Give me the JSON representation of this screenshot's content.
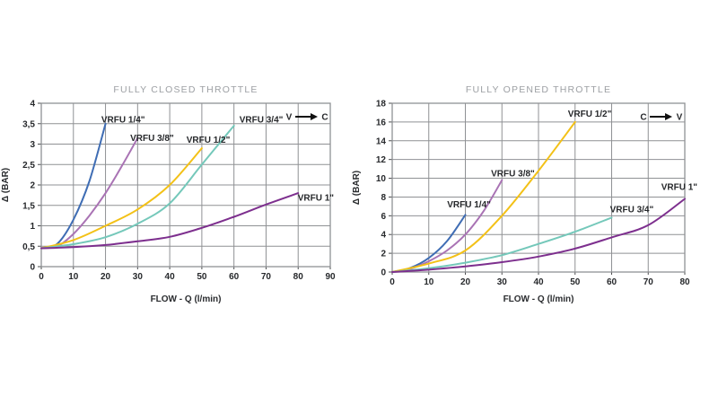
{
  "page": {
    "background": "#ffffff",
    "grid_color": "#8f9194",
    "text_color": "#26282b",
    "title_color": "#9da0a4"
  },
  "chart_data": [
    {
      "type": "line",
      "title": "FULLY CLOSED THROTTLE",
      "xlabel": "FLOW - Q (l/min)",
      "ylabel": "Δ (BAR)",
      "xlim": [
        0,
        90
      ],
      "ylim": [
        0,
        4
      ],
      "xticks": [
        0,
        10,
        20,
        30,
        40,
        50,
        60,
        70,
        80,
        90
      ],
      "yticks": [
        0,
        0.5,
        1,
        1.5,
        2,
        2.5,
        3,
        3.5,
        4
      ],
      "ytick_labels": [
        "0",
        "0,5",
        "1",
        "1,5",
        "2",
        "2,5",
        "3",
        "3,5",
        "4"
      ],
      "grid": true,
      "legend": "inline-series-labels",
      "direction_annotation": {
        "left_letter": "V",
        "right_letter": "C"
      },
      "series": [
        {
          "name": "VRFU 1/4\"",
          "color": "#3f6db4",
          "x": [
            0,
            5,
            10,
            15,
            20
          ],
          "y": [
            0.45,
            0.56,
            1.15,
            2.1,
            3.5
          ],
          "label_at": [
            25.5,
            3.53
          ]
        },
        {
          "name": "VRFU 3/8\"",
          "color": "#a973b4",
          "x": [
            0,
            5,
            10,
            15,
            20,
            25,
            30
          ],
          "y": [
            0.45,
            0.5,
            0.8,
            1.25,
            1.8,
            2.45,
            3.15
          ],
          "label_at": [
            34.5,
            3.08
          ]
        },
        {
          "name": "VRFU 1/2\"",
          "color": "#f3c117",
          "x": [
            0,
            10,
            20,
            30,
            40,
            50
          ],
          "y": [
            0.45,
            0.65,
            1.0,
            1.4,
            2.0,
            2.9
          ],
          "label_at": [
            52,
            3.03
          ]
        },
        {
          "name": "VRFU 3/4\"",
          "color": "#74c8ba",
          "x": [
            0,
            10,
            20,
            30,
            40,
            50,
            60
          ],
          "y": [
            0.45,
            0.55,
            0.72,
            1.05,
            1.55,
            2.5,
            3.45
          ],
          "label_at": [
            68.5,
            3.53
          ]
        },
        {
          "name": "VRFU 1\"",
          "color": "#7d2f8e",
          "x": [
            0,
            10,
            20,
            30,
            40,
            50,
            60,
            70,
            80
          ],
          "y": [
            0.45,
            0.48,
            0.53,
            0.62,
            0.73,
            0.95,
            1.22,
            1.52,
            1.8
          ],
          "label_at": [
            85.5,
            1.62
          ]
        }
      ]
    },
    {
      "type": "line",
      "title": "FULLY OPENED THROTTLE",
      "xlabel": "FLOW - Q (l/min)",
      "ylabel": "Δ (BAR)",
      "xlim": [
        0,
        80
      ],
      "ylim": [
        0,
        18
      ],
      "xticks": [
        0,
        10,
        20,
        30,
        40,
        50,
        60,
        70,
        80
      ],
      "yticks": [
        0,
        2,
        4,
        6,
        8,
        10,
        12,
        14,
        16,
        18
      ],
      "ytick_labels": [
        "0",
        "2",
        "4",
        "6",
        "8",
        "10",
        "12",
        "14",
        "16",
        "18"
      ],
      "grid": true,
      "legend": "inline-series-labels",
      "direction_annotation": {
        "left_letter": "C",
        "right_letter": "V"
      },
      "series": [
        {
          "name": "VRFU 1/4\"",
          "color": "#3f6db4",
          "x": [
            0,
            5,
            10,
            15,
            20
          ],
          "y": [
            0,
            0.45,
            1.5,
            3.3,
            6.1
          ],
          "label_at": [
            21,
            6.9
          ]
        },
        {
          "name": "VRFU 3/8\"",
          "color": "#a973b4",
          "x": [
            0,
            5,
            10,
            15,
            20,
            25,
            30
          ],
          "y": [
            0,
            0.35,
            1.15,
            2.3,
            4.0,
            6.5,
            9.8
          ],
          "label_at": [
            33,
            10.2
          ]
        },
        {
          "name": "VRFU 1/2\"",
          "color": "#f3c117",
          "x": [
            0,
            10,
            20,
            30,
            40,
            50
          ],
          "y": [
            0,
            0.9,
            2.3,
            6.0,
            10.8,
            16.0
          ],
          "label_at": [
            54,
            16.55
          ]
        },
        {
          "name": "VRFU 3/4\"",
          "color": "#74c8ba",
          "x": [
            0,
            10,
            20,
            30,
            40,
            50,
            60
          ],
          "y": [
            0,
            0.4,
            1.0,
            1.8,
            3.0,
            4.3,
            5.8
          ],
          "label_at": [
            65.5,
            6.35
          ]
        },
        {
          "name": "VRFU 1\"",
          "color": "#7d2f8e",
          "x": [
            0,
            10,
            20,
            30,
            40,
            50,
            60,
            70,
            80
          ],
          "y": [
            0,
            0.25,
            0.6,
            1.05,
            1.65,
            2.5,
            3.7,
            5.0,
            7.8
          ],
          "label_at": [
            78.5,
            8.75
          ]
        }
      ]
    }
  ]
}
